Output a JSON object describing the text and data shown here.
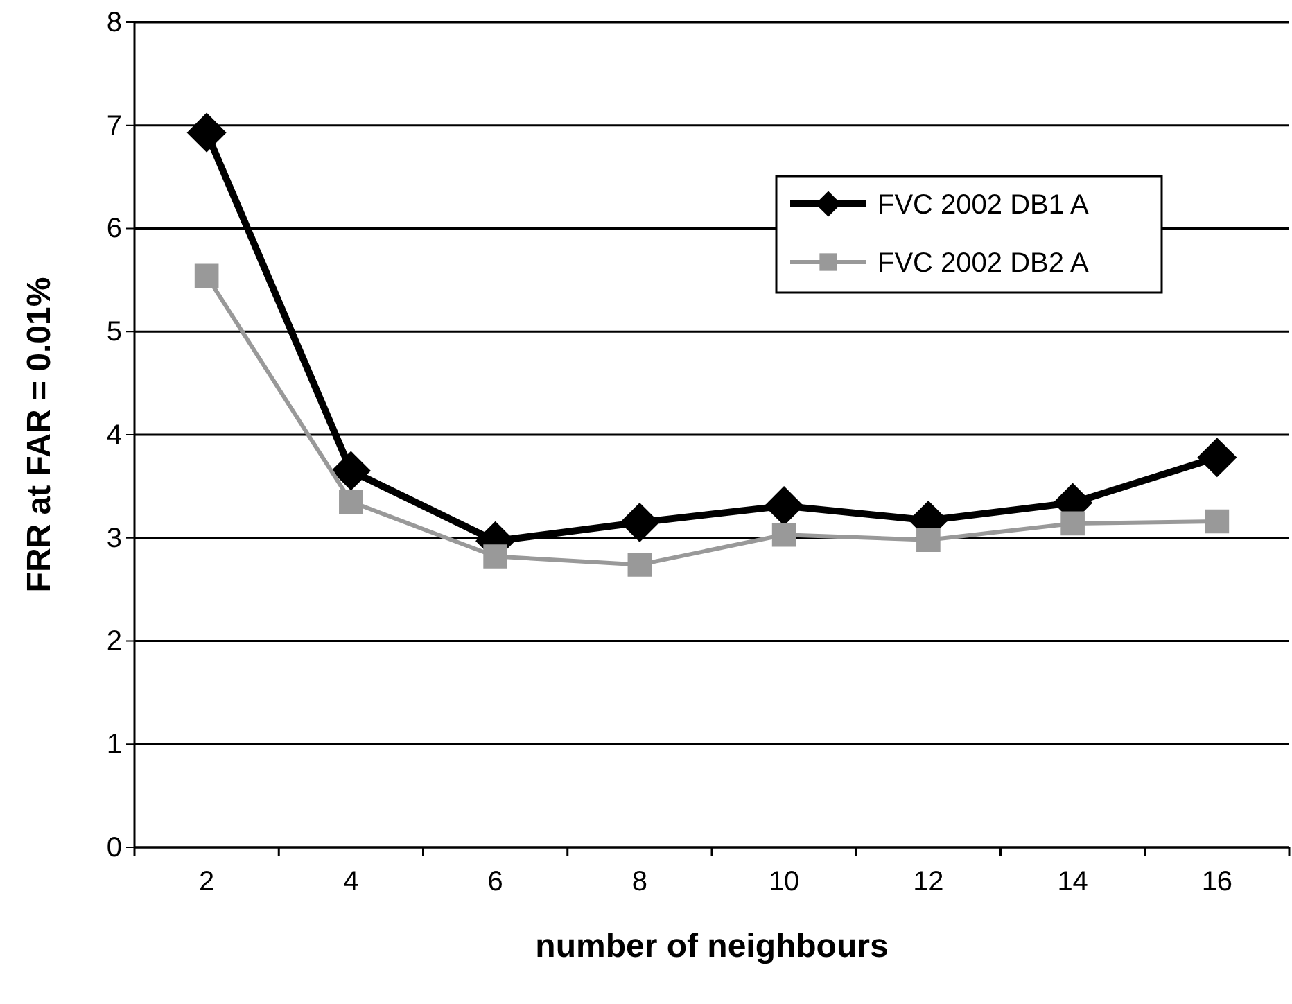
{
  "chart_data": {
    "type": "line",
    "xlabel": "number of neighbours",
    "ylabel": "FRR at FAR = 0.01%",
    "categories": [
      "2",
      "4",
      "6",
      "8",
      "10",
      "12",
      "14",
      "16"
    ],
    "series": [
      {
        "name": "FVC 2002 DB1 A",
        "color": "#000000",
        "marker": "diamond",
        "values": [
          6.93,
          3.65,
          2.97,
          3.15,
          3.31,
          3.17,
          3.34,
          3.78
        ]
      },
      {
        "name": "FVC 2002 DB2 A",
        "color": "#999999",
        "marker": "square",
        "values": [
          5.54,
          3.35,
          2.82,
          2.74,
          3.03,
          2.98,
          3.14,
          3.16
        ]
      }
    ],
    "ylim": [
      0,
      8
    ],
    "yticks": [
      0,
      1,
      2,
      3,
      4,
      5,
      6,
      7,
      8
    ],
    "grid": "y",
    "legend": "top right"
  }
}
